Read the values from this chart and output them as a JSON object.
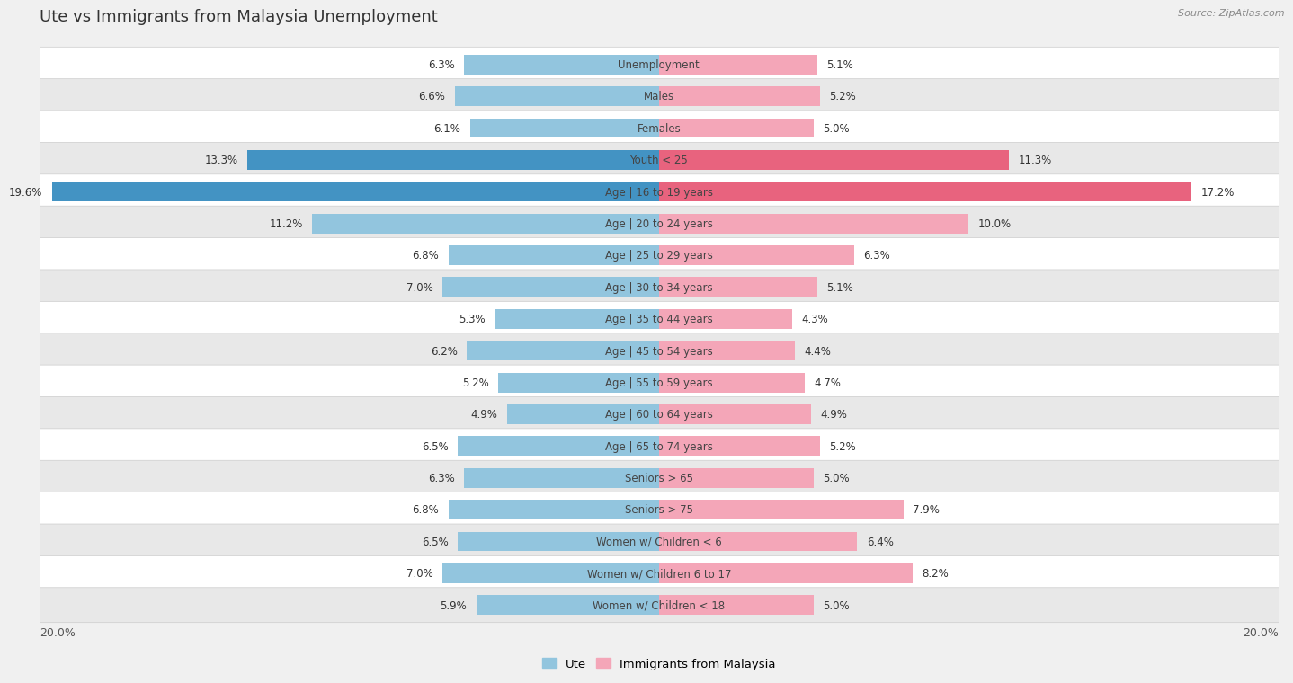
{
  "title": "Ute vs Immigrants from Malaysia Unemployment",
  "source": "Source: ZipAtlas.com",
  "categories": [
    "Unemployment",
    "Males",
    "Females",
    "Youth < 25",
    "Age | 16 to 19 years",
    "Age | 20 to 24 years",
    "Age | 25 to 29 years",
    "Age | 30 to 34 years",
    "Age | 35 to 44 years",
    "Age | 45 to 54 years",
    "Age | 55 to 59 years",
    "Age | 60 to 64 years",
    "Age | 65 to 74 years",
    "Seniors > 65",
    "Seniors > 75",
    "Women w/ Children < 6",
    "Women w/ Children 6 to 17",
    "Women w/ Children < 18"
  ],
  "ute_values": [
    6.3,
    6.6,
    6.1,
    13.3,
    19.6,
    11.2,
    6.8,
    7.0,
    5.3,
    6.2,
    5.2,
    4.9,
    6.5,
    6.3,
    6.8,
    6.5,
    7.0,
    5.9
  ],
  "malaysia_values": [
    5.1,
    5.2,
    5.0,
    11.3,
    17.2,
    10.0,
    6.3,
    5.1,
    4.3,
    4.4,
    4.7,
    4.9,
    5.2,
    5.0,
    7.9,
    6.4,
    8.2,
    5.0
  ],
  "ute_color": "#92c5de",
  "malaysia_color": "#f4a6b8",
  "ute_highlight_color": "#4393c3",
  "malaysia_highlight_color": "#e8637e",
  "highlight_rows": [
    3,
    4
  ],
  "bg_color": "#f0f0f0",
  "row_color_white": "#ffffff",
  "row_color_gray": "#e8e8e8",
  "axis_limit": 20.0,
  "legend_ute": "Ute",
  "legend_malaysia": "Immigrants from Malaysia",
  "bar_height": 0.62
}
